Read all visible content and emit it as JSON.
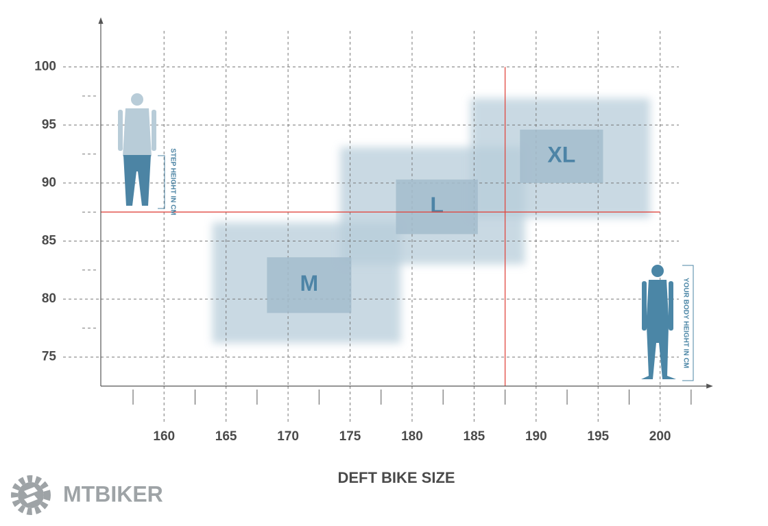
{
  "chart_data": {
    "type": "size-regions",
    "title": "DEFT BIKE SIZE",
    "x_label": "YOUR BODY HEIGHT IN CM",
    "y_label": "STEP HEIGHT IN CM",
    "xlim": [
      154.9,
      204
    ],
    "ylim": [
      72.5,
      104
    ],
    "xticks": [
      160,
      165,
      170,
      175,
      180,
      185,
      190,
      195,
      200
    ],
    "yticks": [
      75,
      80,
      85,
      90,
      95,
      100
    ],
    "minor_xticks": [
      157.5,
      162.5,
      167.5,
      172.5,
      177.5,
      182.5,
      187.5,
      192.5,
      197.5,
      202.5
    ],
    "minor_yticks": [
      77.5,
      82.5,
      87.5,
      92.5,
      97.5
    ],
    "grid": true,
    "color": "#b7cdda",
    "label_color": "#4d84a6",
    "regions": [
      {
        "name": "M",
        "outer": {
          "x": [
            163.9,
            179.1
          ],
          "y": [
            76.2,
            86.6
          ]
        },
        "inner": {
          "x": [
            168.3,
            175.1
          ],
          "y": [
            78.8,
            83.6
          ]
        }
      },
      {
        "name": "L",
        "outer": {
          "x": [
            174.2,
            189.1
          ],
          "y": [
            83.0,
            93.1
          ]
        },
        "inner": {
          "x": [
            178.7,
            185.3
          ],
          "y": [
            85.6,
            90.3
          ]
        }
      },
      {
        "name": "XL",
        "outer": {
          "x": [
            184.7,
            199.2
          ],
          "y": [
            87.0,
            97.3
          ]
        },
        "inner": {
          "x": [
            188.7,
            195.4
          ],
          "y": [
            90.0,
            94.6
          ]
        }
      }
    ],
    "crosshair": {
      "x": 187.5,
      "y": 87.5,
      "color": "#e0473f"
    }
  },
  "logo": {
    "text": "MTBIKER"
  }
}
